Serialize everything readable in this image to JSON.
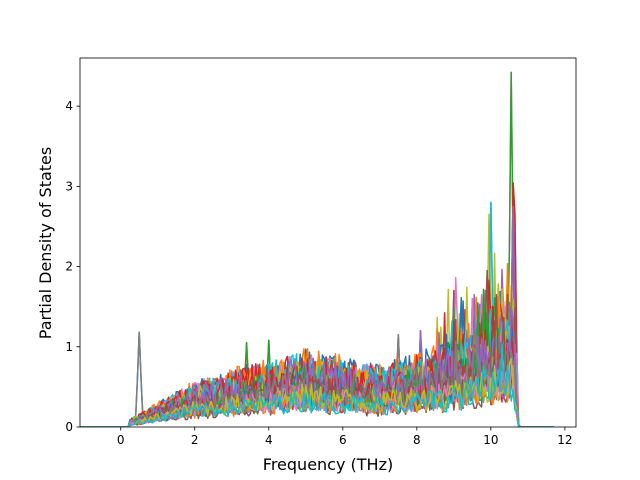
{
  "chart_data": {
    "type": "line",
    "title": "",
    "xlabel": "Frequency (THz)",
    "ylabel": "Partial Density of States",
    "xlim": [
      -1.1,
      12.3
    ],
    "ylim": [
      0,
      4.6
    ],
    "xticks": [
      0,
      2,
      4,
      6,
      8,
      10,
      12
    ],
    "yticks": [
      0,
      1,
      2,
      3,
      4
    ],
    "grid": false,
    "legend": "none",
    "x_support": [
      -1.1,
      11.7
    ],
    "active_range": [
      0.25,
      10.75
    ],
    "series_count": 40,
    "colors": [
      "#1f77b4",
      "#ff7f0e",
      "#2ca02c",
      "#d62728",
      "#9467bd",
      "#8c564b",
      "#e377c2",
      "#7f7f7f",
      "#bcbd22",
      "#17becf"
    ],
    "notable_peaks": [
      {
        "x": 0.5,
        "y": 1.18,
        "color": "#7f7f7f"
      },
      {
        "x": 3.4,
        "y": 1.05,
        "color": "#2ca02c"
      },
      {
        "x": 4.0,
        "y": 1.08,
        "color": "#1f77b4"
      },
      {
        "x": 7.5,
        "y": 1.15,
        "color": "#7f7f7f"
      },
      {
        "x": 8.1,
        "y": 1.2,
        "color": "#1f77b4"
      },
      {
        "x": 9.0,
        "y": 1.7,
        "color": "#9467bd"
      },
      {
        "x": 9.5,
        "y": 1.6,
        "color": "#1f77b4"
      },
      {
        "x": 9.85,
        "y": 1.7,
        "color": "#8c564b"
      },
      {
        "x": 9.95,
        "y": 2.65,
        "color": "#bcbd22"
      },
      {
        "x": 10.0,
        "y": 2.8,
        "color": "#9467bd"
      },
      {
        "x": 10.2,
        "y": 1.35,
        "color": "#1f77b4"
      },
      {
        "x": 10.45,
        "y": 1.8,
        "color": "#9467bd"
      },
      {
        "x": 10.55,
        "y": 4.42,
        "color": "#e377c2"
      },
      {
        "x": 10.62,
        "y": 3.4,
        "color": "#8c564b"
      },
      {
        "x": 10.6,
        "y": 2.75,
        "color": "#1f77b4"
      }
    ]
  }
}
